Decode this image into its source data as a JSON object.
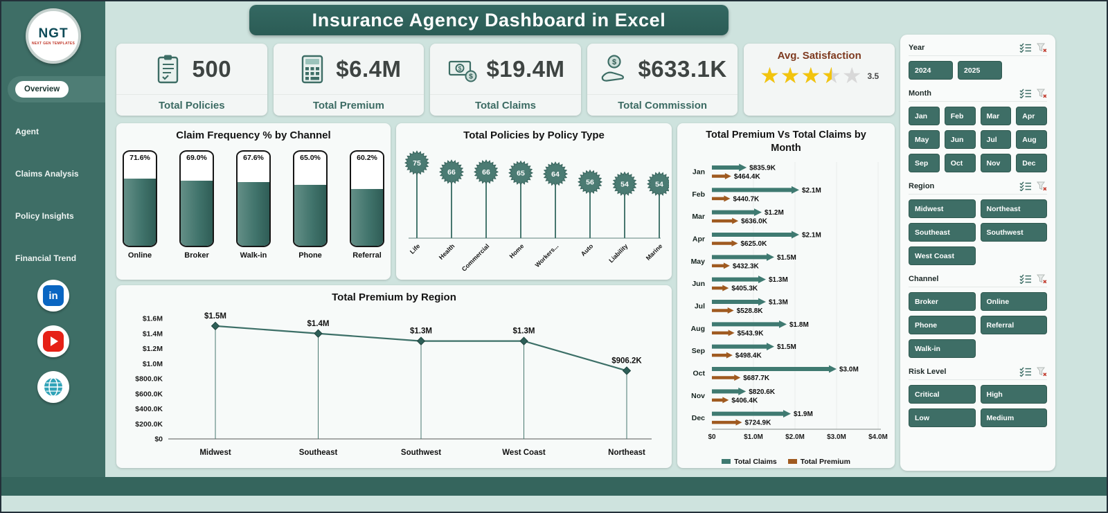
{
  "title": "Insurance Agency Dashboard in Excel",
  "colors": {
    "teal_dark": "#2e5f58",
    "teal": "#3e6e66",
    "teal_chart": "#47776f",
    "series_claims": "#3f7a71",
    "series_premium": "#9f5a20",
    "gold": "#f2c40e",
    "maroon": "#7e3a1f",
    "mint": "#cee3de"
  },
  "sidebar": {
    "logo": {
      "text": "NGT",
      "subtext": "NEXT GEN TEMPLATES"
    },
    "items": [
      {
        "label": "Overview",
        "active": true
      },
      {
        "label": "Agent",
        "active": false
      },
      {
        "label": "Claims Analysis",
        "active": false
      },
      {
        "label": "Policy Insights",
        "active": false
      },
      {
        "label": "Financial Trend",
        "active": false
      }
    ],
    "social": {
      "linkedin_glyph": "in"
    }
  },
  "kpis": [
    {
      "icon": "policies-icon",
      "value": "500",
      "label": "Total Policies"
    },
    {
      "icon": "premium-icon",
      "value": "$6.4M",
      "label": "Total Premium"
    },
    {
      "icon": "claims-icon",
      "value": "$19.4M",
      "label": "Total Claims"
    },
    {
      "icon": "commission-icon",
      "value": "$633.1K",
      "label": "Total Commission"
    }
  ],
  "satisfaction": {
    "title": "Avg. Satisfaction",
    "value": 3.5,
    "max": 5,
    "value_label": "3.5"
  },
  "chart_data": [
    {
      "id": "claim-frequency-by-channel",
      "type": "bar",
      "title": "Claim Frequency % by Channel",
      "categories": [
        "Online",
        "Broker",
        "Walk-in",
        "Phone",
        "Referral"
      ],
      "values": [
        71.6,
        69.0,
        67.6,
        65.0,
        60.2
      ],
      "value_labels": [
        "71.6%",
        "69.0%",
        "67.6%",
        "65.0%",
        "60.2%"
      ],
      "ylim": [
        0,
        100
      ]
    },
    {
      "id": "total-policies-by-policy-type",
      "type": "lollipop",
      "title": "Total Policies by Policy Type",
      "categories": [
        "Life",
        "Health",
        "Commercial",
        "Home",
        "Workers...",
        "Auto",
        "Liability",
        "Marine"
      ],
      "values": [
        75,
        66,
        66,
        65,
        64,
        56,
        54,
        54
      ],
      "ylim": [
        0,
        80
      ]
    },
    {
      "id": "total-premium-by-region",
      "type": "line",
      "title": "Total Premium by Region",
      "categories": [
        "Midwest",
        "Southeast",
        "Southwest",
        "West Coast",
        "Northeast"
      ],
      "values": [
        1500000,
        1400000,
        1300000,
        1300000,
        906200
      ],
      "value_labels": [
        "$1.5M",
        "$1.4M",
        "$1.3M",
        "$1.3M",
        "$906.2K"
      ],
      "ytick_labels": [
        "$0",
        "$200.0K",
        "$400.0K",
        "$600.0K",
        "$800.0K",
        "$1.0M",
        "$1.2M",
        "$1.4M",
        "$1.6M"
      ],
      "ylim": [
        0,
        1600000
      ]
    },
    {
      "id": "total-premium-vs-total-claims-by-month",
      "type": "bar-h",
      "title": "Total Premium Vs Total Claims by Month",
      "categories": [
        "Jan",
        "Feb",
        "Mar",
        "Apr",
        "May",
        "Jun",
        "Jul",
        "Aug",
        "Sep",
        "Oct",
        "Nov",
        "Dec"
      ],
      "series": [
        {
          "name": "Total Claims",
          "values": [
            835900,
            2100000,
            1200000,
            2100000,
            1500000,
            1300000,
            1300000,
            1800000,
            1500000,
            3000000,
            820600,
            1900000
          ],
          "labels": [
            "$835.9K",
            "$2.1M",
            "$1.2M",
            "$2.1M",
            "$1.5M",
            "$1.3M",
            "$1.3M",
            "$1.8M",
            "$1.5M",
            "$3.0M",
            "$820.6K",
            "$1.9M"
          ]
        },
        {
          "name": "Total Premium",
          "values": [
            464400,
            440700,
            636000,
            625000,
            432300,
            405300,
            528800,
            543900,
            498400,
            687700,
            406400,
            724900
          ],
          "labels": [
            "$464.4K",
            "$440.7K",
            "$636.0K",
            "$625.0K",
            "$432.3K",
            "$405.3K",
            "$528.8K",
            "$543.9K",
            "$498.4K",
            "$687.7K",
            "$406.4K",
            "$724.9K"
          ]
        }
      ],
      "xtick_labels": [
        "$0",
        "$1.0M",
        "$2.0M",
        "$3.0M",
        "$4.0M"
      ],
      "xlim": [
        0,
        4000000
      ],
      "legend": [
        "Total Claims",
        "Total Premium"
      ]
    }
  ],
  "slicers": [
    {
      "label": "Year",
      "columns": 2,
      "items": [
        "2024",
        "2025"
      ]
    },
    {
      "label": "Month",
      "columns": 4,
      "items": [
        "Jan",
        "Feb",
        "Mar",
        "Apr",
        "May",
        "Jun",
        "Jul",
        "Aug",
        "Sep",
        "Oct",
        "Nov",
        "Dec"
      ]
    },
    {
      "label": "Region",
      "columns": 2,
      "items": [
        "Midwest",
        "Northeast",
        "Southeast",
        "Southwest",
        "West Coast"
      ]
    },
    {
      "label": "Channel",
      "columns": 2,
      "items": [
        "Broker",
        "Online",
        "Phone",
        "Referral",
        "Walk-in"
      ]
    },
    {
      "label": "Risk Level",
      "columns": 2,
      "items": [
        "Critical",
        "High",
        "Low",
        "Medium"
      ]
    }
  ]
}
